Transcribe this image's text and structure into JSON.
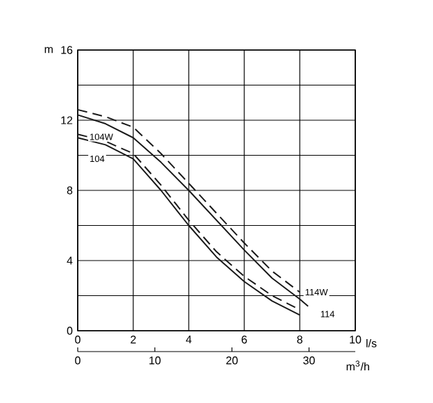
{
  "chart_data": {
    "type": "line",
    "xlabel": "l/s",
    "ylabel": "m",
    "x2label": "m$^{3}$/h",
    "xlim": [
      0,
      10
    ],
    "xticks": [
      0,
      2,
      4,
      6,
      8,
      10
    ],
    "ylim": [
      0,
      16
    ],
    "yticks": [
      0,
      {
        "value": 2,
        "label": null
      },
      4,
      {
        "value": 6,
        "label": null
      },
      8,
      {
        "value": 10,
        "label": null
      },
      12,
      {
        "value": 14,
        "label": null
      },
      16
    ],
    "x2lim": [
      0,
      36
    ],
    "x2ticks": [
      0,
      10,
      20,
      30
    ],
    "grid": true,
    "marker": "none",
    "series": [
      {
        "color": "#1a1a1a",
        "line_style": "solid",
        "x": [
          0,
          1,
          2,
          3,
          4,
          5,
          6,
          7,
          8,
          8.3
        ],
        "values": [
          12.3,
          11.8,
          11.0,
          9.6,
          8.0,
          6.3,
          4.6,
          3.0,
          1.8,
          1.4
        ]
      },
      {
        "color": "#1a1a1a",
        "line_style": "dashed",
        "x": [
          0,
          1,
          2,
          3,
          4,
          5,
          6,
          7,
          8
        ],
        "values": [
          12.6,
          12.2,
          11.6,
          10.1,
          8.4,
          6.7,
          5.0,
          3.4,
          2.2
        ]
      },
      {
        "color": "#1a1a1a",
        "line_style": "solid",
        "x": [
          0,
          1,
          2,
          3,
          4,
          5,
          6,
          7,
          8
        ],
        "values": [
          11.0,
          10.6,
          9.8,
          8.0,
          6.0,
          4.2,
          2.8,
          1.7,
          0.9
        ]
      },
      {
        "color": "#1a1a1a",
        "line_style": "dashed",
        "x": [
          0,
          1,
          2,
          3,
          4,
          5,
          6,
          7,
          8
        ],
        "values": [
          11.2,
          10.8,
          10.1,
          8.3,
          6.3,
          4.5,
          3.1,
          2.0,
          1.2
        ]
      }
    ],
    "annotations": [
      {
        "text": "104W",
        "x": 0.85,
        "y": 11.05
      },
      {
        "text": "104",
        "x": 0.7,
        "y": 9.8
      },
      {
        "text": "114W",
        "x": 8.6,
        "y": 2.2
      },
      {
        "text": "114",
        "x": 9.0,
        "y": 0.95
      }
    ]
  }
}
